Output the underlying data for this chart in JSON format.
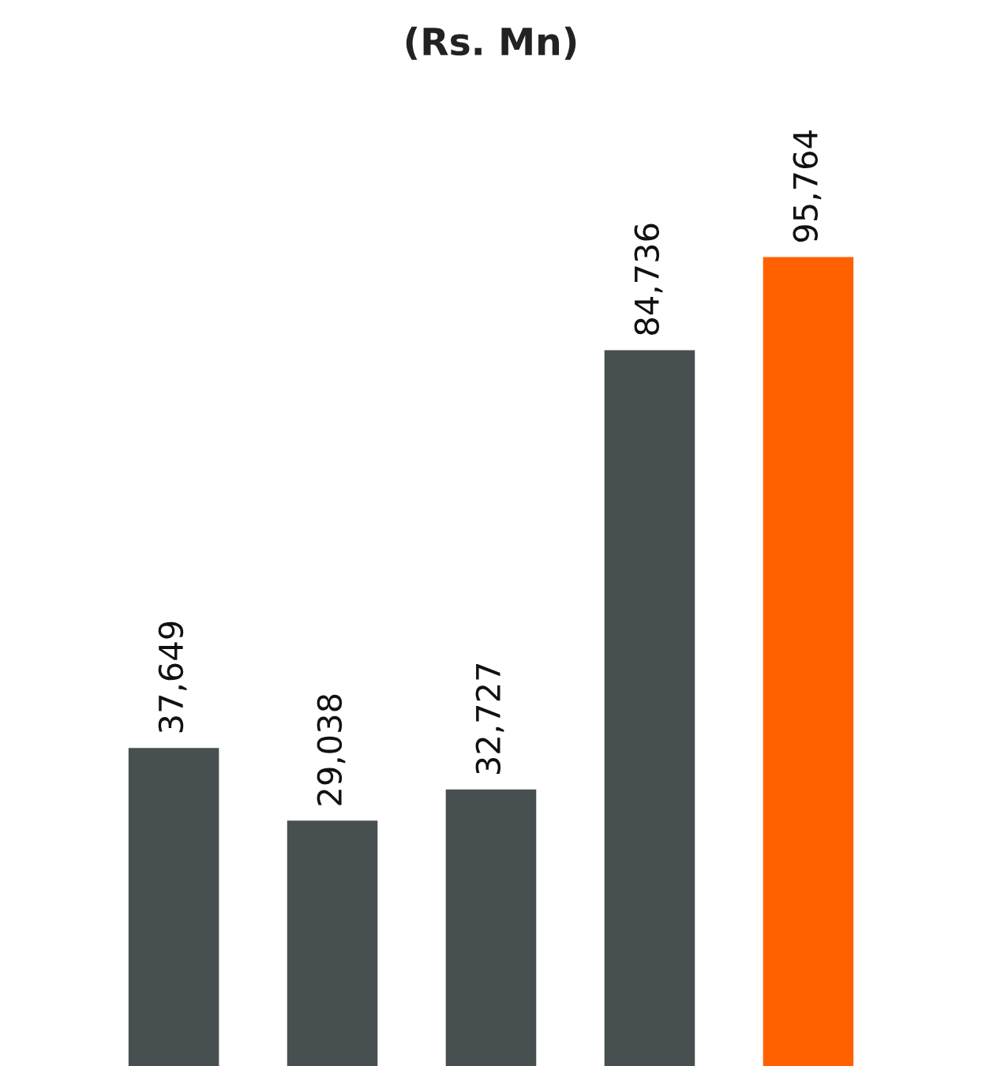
{
  "chart_data": {
    "type": "bar",
    "title": "(Rs. Mn)",
    "categories": [
      null,
      null,
      null,
      null,
      null
    ],
    "values": [
      37649,
      29038,
      32727,
      84736,
      95764
    ],
    "value_labels": [
      "37,649",
      "29,038",
      "32,727",
      "84,736",
      "95,764"
    ],
    "colors": [
      "#474f50",
      "#474f50",
      "#474f50",
      "#474f50",
      "#ff6100"
    ]
  }
}
